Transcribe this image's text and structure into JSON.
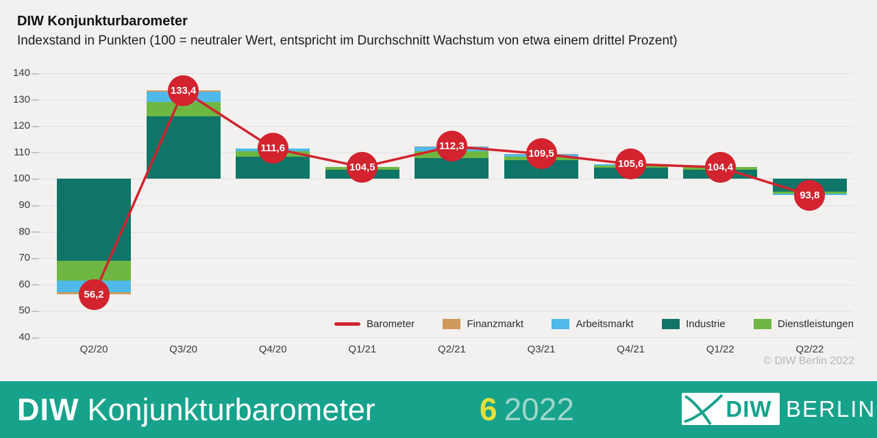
{
  "header": {
    "title": "DIW Konjunkturbarometer",
    "subtitle": "Indexstand in Punkten (100 = neutraler Wert, entspricht im Durchschnitt Wachstum von etwa einem drittel Prozent)"
  },
  "chart_data": {
    "type": "bar",
    "subtype": "stacked-deviation-bars-with-line",
    "baseline": 100,
    "ylim": [
      40,
      140
    ],
    "yticks": [
      140,
      130,
      120,
      110,
      100,
      90,
      80,
      70,
      60,
      50,
      40
    ],
    "grid": "horizontal",
    "categories": [
      "Q2/20",
      "Q3/20",
      "Q4/20",
      "Q1/21",
      "Q2/21",
      "Q3/21",
      "Q4/21",
      "Q1/22",
      "Q2/22"
    ],
    "colors": {
      "barometer": "#d2232e",
      "finanzmarkt": "#cf9a5c",
      "arbeitsmarkt": "#4fb9e9",
      "industrie": "#0e7568",
      "dienstleistungen": "#6eb743",
      "rest": "#8fa0ac"
    },
    "legend": [
      {
        "key": "barometer",
        "label": "Barometer",
        "swatch": "line"
      },
      {
        "key": "finanzmarkt",
        "label": "Finanzmarkt",
        "swatch": "rect"
      },
      {
        "key": "arbeitsmarkt",
        "label": "Arbeitsmarkt",
        "swatch": "rect"
      },
      {
        "key": "industrie",
        "label": "Industrie",
        "swatch": "rect"
      },
      {
        "key": "dienstleistungen",
        "label": "Dienstleistungen",
        "swatch": "rect"
      }
    ],
    "bars": [
      {
        "category": "Q2/20",
        "barometer": 56.2,
        "barometer_label": "56,2",
        "segments": [
          {
            "series": "industrie",
            "delta": -31.0
          },
          {
            "series": "dienstleistungen",
            "delta": -7.5
          },
          {
            "series": "arbeitsmarkt",
            "delta": -4.3
          },
          {
            "series": "finanzmarkt",
            "delta": -1.0
          }
        ]
      },
      {
        "category": "Q3/20",
        "barometer": 133.4,
        "barometer_label": "133,4",
        "segments": [
          {
            "series": "industrie",
            "delta": 23.7
          },
          {
            "series": "dienstleistungen",
            "delta": 5.3
          },
          {
            "series": "arbeitsmarkt",
            "delta": 4.0
          },
          {
            "series": "finanzmarkt",
            "delta": 0.4
          }
        ]
      },
      {
        "category": "Q4/20",
        "barometer": 111.6,
        "barometer_label": "111,6",
        "segments": [
          {
            "series": "industrie",
            "delta": 8.5
          },
          {
            "series": "dienstleistungen",
            "delta": 2.0
          },
          {
            "series": "arbeitsmarkt",
            "delta": 1.1
          }
        ]
      },
      {
        "category": "Q1/21",
        "barometer": 104.5,
        "barometer_label": "104,5",
        "segments": [
          {
            "series": "industrie",
            "delta": 3.5
          },
          {
            "series": "dienstleistungen",
            "delta": 1.0
          }
        ]
      },
      {
        "category": "Q2/21",
        "barometer": 112.3,
        "barometer_label": "112,3",
        "segments": [
          {
            "series": "industrie",
            "delta": 8.0
          },
          {
            "series": "dienstleistungen",
            "delta": 2.4
          },
          {
            "series": "arbeitsmarkt",
            "delta": 1.5
          },
          {
            "series": "rest",
            "delta": 0.4
          }
        ]
      },
      {
        "category": "Q3/21",
        "barometer": 109.5,
        "barometer_label": "109,5",
        "segments": [
          {
            "series": "industrie",
            "delta": 7.0
          },
          {
            "series": "dienstleistungen",
            "delta": 1.3
          },
          {
            "series": "arbeitsmarkt",
            "delta": 0.9
          },
          {
            "series": "rest",
            "delta": 0.3
          }
        ]
      },
      {
        "category": "Q4/21",
        "barometer": 105.6,
        "barometer_label": "105,6",
        "segments": [
          {
            "series": "industrie",
            "delta": 4.2
          },
          {
            "series": "dienstleistungen",
            "delta": 0.9
          },
          {
            "series": "arbeitsmarkt",
            "delta": 0.5
          }
        ]
      },
      {
        "category": "Q1/22",
        "barometer": 104.4,
        "barometer_label": "104,4",
        "segments": [
          {
            "series": "industrie",
            "delta": 3.5
          },
          {
            "series": "dienstleistungen",
            "delta": 0.9
          }
        ]
      },
      {
        "category": "Q2/22",
        "barometer": 93.8,
        "barometer_label": "93,8",
        "segments": [
          {
            "series": "industrie",
            "delta": -4.8
          },
          {
            "series": "dienstleistungen",
            "delta": -0.9
          },
          {
            "series": "arbeitsmarkt",
            "delta": -0.5
          }
        ]
      }
    ]
  },
  "copyright": "© DIW Berlin 2022",
  "footer": {
    "brand_bold": "DIW",
    "brand_rest": "Konjunkturbarometer",
    "issue_number": "6",
    "issue_year": "2022",
    "logo_diw": "DIW",
    "logo_berlin": "BERLIN",
    "band_color": "#17a28c"
  }
}
